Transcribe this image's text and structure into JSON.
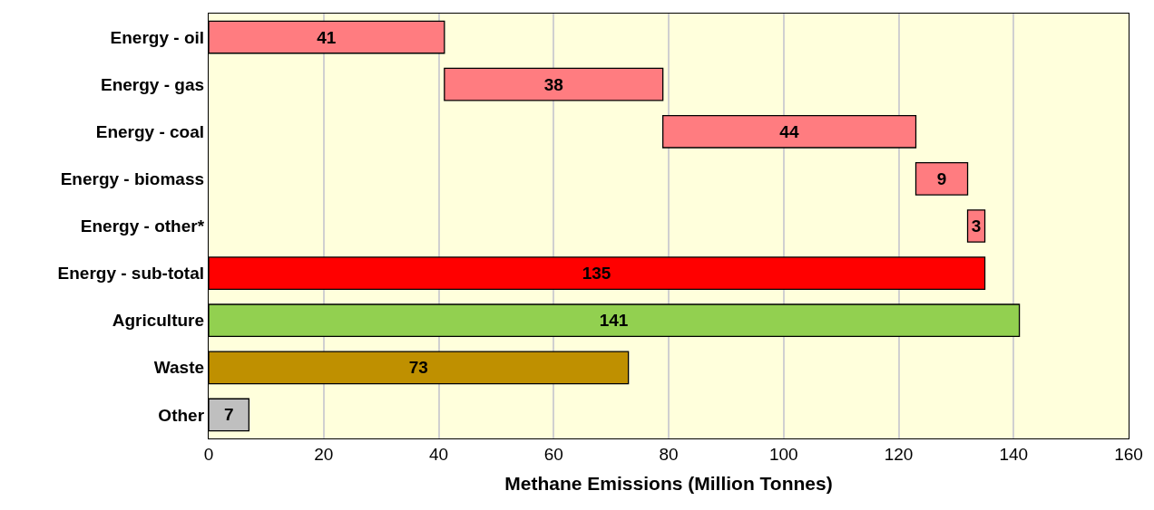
{
  "chart_data": {
    "type": "bar",
    "orientation": "horizontal",
    "xlabel": "Methane Emissions (Million Tonnes)",
    "categories": [
      "Energy - oil",
      "Energy - gas",
      "Energy - coal",
      "Energy - biomass",
      "Energy - other*",
      "Energy - sub-total",
      "Agriculture",
      "Waste",
      "Other"
    ],
    "values": [
      41,
      38,
      44,
      9,
      3,
      135,
      141,
      73,
      7
    ],
    "base": [
      0,
      41,
      79,
      123,
      132,
      0,
      0,
      0,
      0
    ],
    "colors": [
      "#ff7c80",
      "#ff7c80",
      "#ff7c80",
      "#ff7c80",
      "#ff7c80",
      "#ff0000",
      "#92d050",
      "#bf9000",
      "#bfbfbf"
    ],
    "xlim": [
      0,
      160
    ],
    "xticks": [
      0,
      20,
      40,
      60,
      80,
      100,
      120,
      140,
      160
    ],
    "grid": "x",
    "data_labels": true
  }
}
